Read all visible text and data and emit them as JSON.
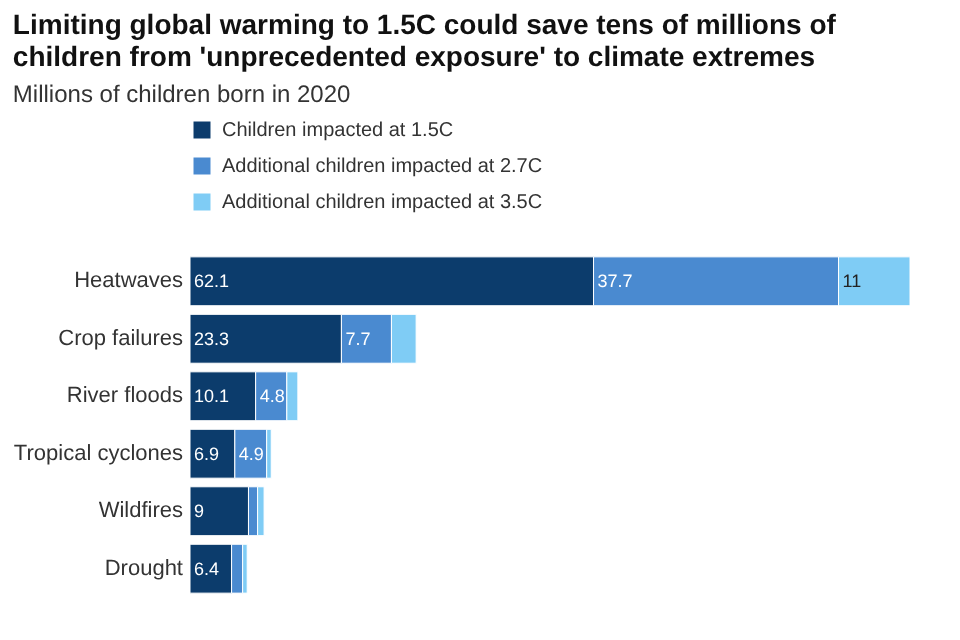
{
  "chart_data": {
    "type": "bar",
    "orientation": "horizontal",
    "stacked": true,
    "title": "Limiting global warming to 1.5C could save tens of millions of children from 'unprecedented exposure' to climate extremes",
    "subtitle": "Millions of children born in 2020",
    "categories": [
      "Heatwaves",
      "Crop failures",
      "River floods",
      "Tropical cyclones",
      "Wildfires",
      "Drought"
    ],
    "series": [
      {
        "name": "Children impacted at 1.5C",
        "color": "#0c3c6c",
        "values": [
          62.1,
          23.3,
          10.1,
          6.9,
          9,
          6.4
        ],
        "value_labels": [
          "62.1",
          "23.3",
          "10.1",
          "6.9",
          "9",
          "6.4"
        ]
      },
      {
        "name": "Additional children impacted at 2.7C",
        "color": "#4a8ad0",
        "values": [
          37.7,
          7.7,
          4.8,
          4.9,
          1.4,
          1.7
        ],
        "value_labels": [
          "37.7",
          "7.7",
          "4.8",
          "4.9",
          null,
          null
        ]
      },
      {
        "name": "Additional children impacted at 3.5C",
        "color": "#7fccf5",
        "values": [
          11,
          3.8,
          1.7,
          0.7,
          1,
          0.7
        ],
        "value_labels": [
          "11",
          null,
          null,
          null,
          null,
          null
        ]
      }
    ],
    "legend": "top left"
  }
}
